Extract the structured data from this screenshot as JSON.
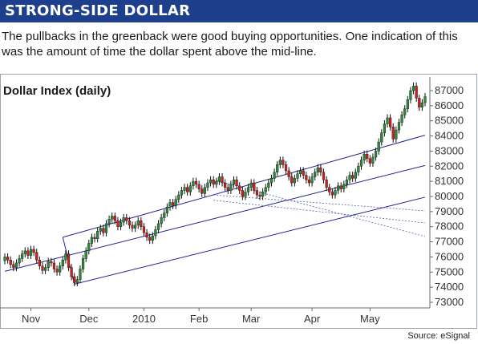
{
  "header": {
    "title": "STRONG-SIDE DOLLAR"
  },
  "caption": "The pullbacks in the greenback were good buying opportunities. One indication of this was the amount of time the dollar spent above the mid-line.",
  "source": "Source: eSignal",
  "colors": {
    "banner": "#1d3f8c",
    "up": "#2c8a3c",
    "down": "#d0201e",
    "trend": "#23238c",
    "dotted": "#5b5bb0"
  },
  "chart_data": {
    "type": "candlestick",
    "title": "Dollar Index (daily)",
    "xlabel": "",
    "ylabel": "",
    "ylim": [
      73000,
      88000
    ],
    "y_ticks": [
      73000,
      74000,
      75000,
      76000,
      77000,
      78000,
      79000,
      80000,
      81000,
      82000,
      83000,
      84000,
      85000,
      86000,
      87000
    ],
    "x_ticks": [
      {
        "label": "Nov",
        "index": 9
      },
      {
        "label": "Dec",
        "index": 29
      },
      {
        "label": "2010",
        "index": 48
      },
      {
        "label": "Feb",
        "index": 67
      },
      {
        "label": "Mar",
        "index": 85
      },
      {
        "label": "Apr",
        "index": 106
      },
      {
        "label": "May",
        "index": 126
      }
    ],
    "closes": [
      76000,
      75800,
      75500,
      75300,
      75600,
      75900,
      76200,
      76400,
      76100,
      76500,
      76300,
      75800,
      75400,
      75100,
      75300,
      75700,
      75600,
      75200,
      75000,
      75400,
      75800,
      76200,
      75300,
      74700,
      74300,
      74500,
      75200,
      75900,
      76400,
      76900,
      77300,
      77200,
      77700,
      77900,
      77600,
      78200,
      78500,
      78700,
      78400,
      78000,
      78300,
      78600,
      78400,
      78100,
      77900,
      78100,
      78400,
      78000,
      77600,
      77300,
      77100,
      77400,
      77800,
      78200,
      78600,
      78900,
      79300,
      79600,
      79400,
      79800,
      80100,
      80400,
      80600,
      80300,
      80700,
      81000,
      80800,
      80500,
      80200,
      80600,
      80900,
      81100,
      80800,
      81000,
      81300,
      80900,
      80600,
      80400,
      80800,
      81100,
      80700,
      80400,
      80000,
      80300,
      80600,
      80900,
      80400,
      80100,
      80000,
      80300,
      80600,
      80900,
      81200,
      81600,
      82100,
      82400,
      82100,
      81700,
      81300,
      80900,
      81200,
      81500,
      81700,
      81400,
      81100,
      80900,
      81300,
      81600,
      81900,
      81600,
      81100,
      80600,
      80300,
      80100,
      80400,
      80700,
      80500,
      80800,
      81100,
      81400,
      81200,
      81600,
      82000,
      82400,
      82800,
      82500,
      82200,
      82600,
      83000,
      83600,
      84200,
      84800,
      85200,
      84600,
      83800,
      84400,
      84900,
      85400,
      85800,
      86400,
      87000,
      87300,
      86500,
      85900,
      86200,
      86600
    ]
  }
}
